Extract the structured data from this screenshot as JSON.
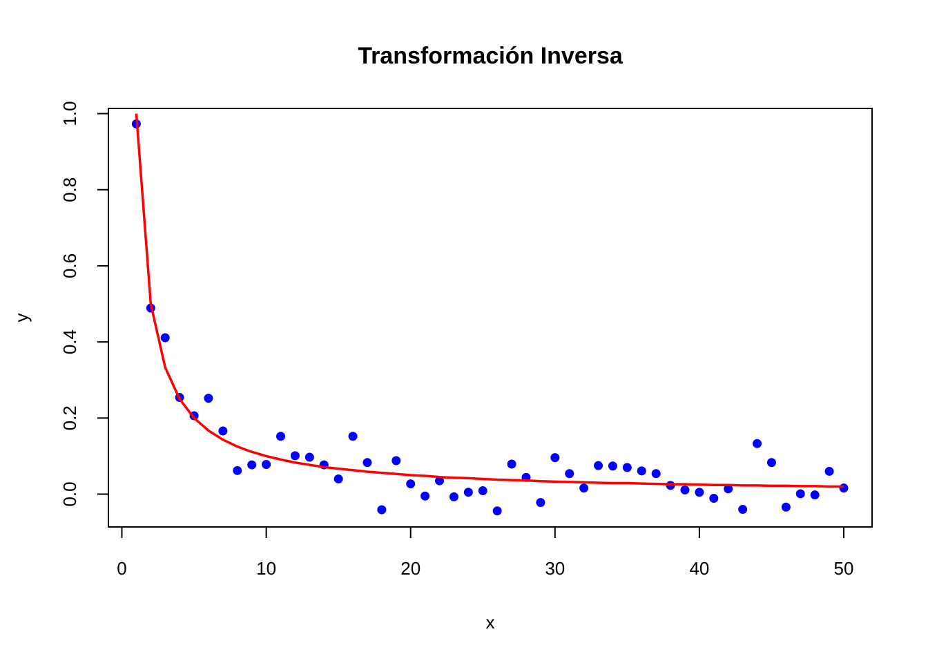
{
  "chart_data": {
    "type": "scatter",
    "title": "Transformación Inversa",
    "xlabel": "x",
    "ylabel": "y",
    "xlim": [
      0,
      50
    ],
    "ylim": [
      -0.05,
      1.0
    ],
    "xticks": [
      "0",
      "10",
      "20",
      "30",
      "40",
      "50"
    ],
    "yticks": [
      "0.0",
      "0.2",
      "0.4",
      "0.6",
      "0.8",
      "1.0"
    ],
    "grid": false,
    "series": [
      {
        "kind": "points",
        "color": "#0000ff",
        "x": [
          1,
          2,
          3,
          4,
          5,
          6,
          7,
          8,
          9,
          10,
          11,
          12,
          13,
          14,
          15,
          16,
          17,
          18,
          19,
          20,
          21,
          22,
          23,
          24,
          25,
          26,
          27,
          28,
          29,
          30,
          31,
          32,
          33,
          34,
          35,
          36,
          37,
          38,
          39,
          40,
          41,
          42,
          43,
          44,
          45,
          46,
          47,
          48,
          49,
          50
        ],
        "y": [
          0.973,
          0.489,
          0.411,
          0.254,
          0.206,
          0.252,
          0.166,
          0.062,
          0.077,
          0.078,
          0.152,
          0.101,
          0.097,
          0.077,
          0.04,
          0.152,
          0.083,
          -0.041,
          0.088,
          0.027,
          -0.005,
          0.035,
          -0.007,
          0.005,
          0.009,
          -0.044,
          0.079,
          0.044,
          -0.022,
          0.096,
          0.054,
          0.016,
          0.075,
          0.074,
          0.07,
          0.061,
          0.054,
          0.023,
          0.011,
          0.005,
          -0.011,
          0.014,
          -0.04,
          0.133,
          0.083,
          -0.034,
          0.001,
          -0.002,
          0.06,
          0.016
        ]
      },
      {
        "kind": "line",
        "color": "#ff0000",
        "x": [
          1,
          2,
          3,
          4,
          5,
          6,
          7,
          8,
          9,
          10,
          11,
          12,
          13,
          14,
          15,
          16,
          17,
          18,
          19,
          20,
          21,
          22,
          23,
          24,
          25,
          26,
          27,
          28,
          29,
          30,
          31,
          32,
          33,
          34,
          35,
          36,
          37,
          38,
          39,
          40,
          41,
          42,
          43,
          44,
          45,
          46,
          47,
          48,
          49,
          50
        ],
        "y": [
          1.0,
          0.5,
          0.333,
          0.25,
          0.2,
          0.167,
          0.143,
          0.125,
          0.111,
          0.1,
          0.091,
          0.083,
          0.077,
          0.071,
          0.067,
          0.063,
          0.059,
          0.056,
          0.053,
          0.05,
          0.048,
          0.045,
          0.043,
          0.042,
          0.04,
          0.038,
          0.037,
          0.036,
          0.034,
          0.033,
          0.032,
          0.031,
          0.03,
          0.029,
          0.029,
          0.028,
          0.027,
          0.026,
          0.026,
          0.025,
          0.024,
          0.024,
          0.023,
          0.023,
          0.022,
          0.022,
          0.021,
          0.021,
          0.02,
          0.02
        ]
      }
    ]
  }
}
